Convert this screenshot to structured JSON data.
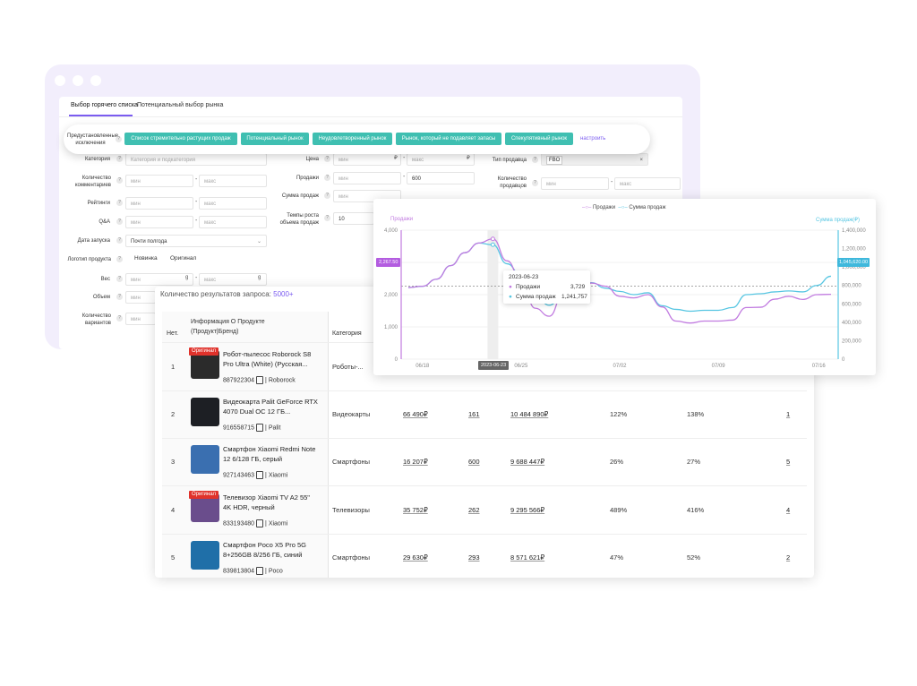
{
  "window": {
    "title": ""
  },
  "tabs": [
    "Выбор горячего списка",
    "Потенциальный выбор рынка"
  ],
  "preset": {
    "label": "Предустановленные исключения",
    "buttons": [
      "Список стремительно растущих продаж",
      "Потенциальный рынок",
      "Неудовлетворенный рынок",
      "Рынок, который не подавляет запасы",
      "Спекулятивный рынок"
    ],
    "customize": "настроить"
  },
  "filters": {
    "category": {
      "label": "Категория",
      "placeholder": "Категория и подкатегория"
    },
    "comments": {
      "label": "Количество комментариев",
      "min": "мин",
      "max": "макс"
    },
    "rating": {
      "label": "Рейтинги",
      "min": "мин",
      "max": "макс"
    },
    "qa": {
      "label": "Q&A",
      "min": "мин",
      "max": "макс"
    },
    "launch": {
      "label": "Дата запуска",
      "value": "Почти полгода"
    },
    "logo": {
      "label": "Логотип продукта",
      "options": [
        "Новинка",
        "Оригинал"
      ]
    },
    "weight": {
      "label": "Вес",
      "min": "мин",
      "max": "макс",
      "unit": "g"
    },
    "volume": {
      "label": "Объем",
      "min": "мин"
    },
    "variants": {
      "label": "Количество вариантов",
      "min": "мин"
    },
    "price": {
      "label": "Цена",
      "min": "мин",
      "max": "макс",
      "currency": "₽"
    },
    "sales": {
      "label": "Продажи",
      "min": "мин",
      "max": "600"
    },
    "sales_sum": {
      "label": "Сумма продаж",
      "min": "мин"
    },
    "growth": {
      "label": "Темпы роста объема продаж",
      "min": "10"
    },
    "seller_type": {
      "label": "Тип продавца",
      "tag": "FBO"
    },
    "sellers": {
      "label": "Количество продавцов",
      "min": "мин",
      "max": "макс"
    }
  },
  "results": {
    "label": "Количество результатов запроса:",
    "count": "5000+",
    "columns": {
      "no": "Нет.",
      "info": "Информация О Продукте (Продукт|Бренд)",
      "category": "Категория"
    },
    "rows": [
      {
        "no": "1",
        "badge": "Оригинал",
        "name": "Робот-пылесос Roborock S8 Pro Ultra (White) (Русская...",
        "sku": "887922304",
        "brand": "Roborock",
        "category": "Роботы-...",
        "price": "",
        "sales": "",
        "sum": "",
        "g1": "",
        "g2": "",
        "sellers": "",
        "img_color": "#2b2b2b"
      },
      {
        "no": "2",
        "badge": "",
        "name": "Видеокарта Palit GeForce RTX 4070 Dual OC 12 ГБ...",
        "sku": "916558715",
        "brand": "Palit",
        "category": "Видеокарты",
        "price": "66 490₽",
        "sales": "161",
        "sum": "10 484 890₽",
        "g1": "122%",
        "g2": "138%",
        "sellers": "1",
        "img_color": "#1d1f24"
      },
      {
        "no": "3",
        "badge": "",
        "name": "Смартфон Xiaomi Redmi Note 12 6/128 ГБ, серый",
        "sku": "927143463",
        "brand": "Xiaomi",
        "category": "Смартфоны",
        "price": "16 207₽",
        "sales": "600",
        "sum": "9 688 447₽",
        "g1": "26%",
        "g2": "27%",
        "sellers": "5",
        "img_color": "#3a6fb0"
      },
      {
        "no": "4",
        "badge": "Оригинал",
        "name": "Телевизор Xiaomi TV A2 55\" 4K HDR, черный",
        "sku": "833193480",
        "brand": "Xiaomi",
        "category": "Телевизоры",
        "price": "35 752₽",
        "sales": "262",
        "sum": "9 295 566₽",
        "g1": "489%",
        "g2": "416%",
        "sellers": "4",
        "img_color": "#6a4d8c"
      },
      {
        "no": "5",
        "badge": "",
        "name": "Смартфон Poco X5 Pro 5G 8+256GB 8/256 ГБ, синий",
        "sku": "839813804",
        "brand": "Poco",
        "category": "Смартфоны",
        "price": "29 630₽",
        "sales": "293",
        "sum": "8 571 621₽",
        "g1": "47%",
        "g2": "52%",
        "sellers": "2",
        "img_color": "#1f6fa8"
      }
    ]
  },
  "chart_data": {
    "type": "line",
    "legend": [
      "Продажи",
      "Сумма продаж"
    ],
    "ylabel_left": "Продажи",
    "ylabel_right": "Сумма продаж(₽)",
    "yticks_left": [
      "0",
      "1,000",
      "2,000",
      "3,000",
      "4,000"
    ],
    "yticks_right": [
      "0",
      "200,000",
      "400,000",
      "600,000",
      "800,000",
      "1,000,000",
      "1,200,000",
      "1,400,000"
    ],
    "xticks": [
      "06/18",
      "06/25",
      "07/02",
      "07/09",
      "07/16"
    ],
    "ylim_left": [
      0,
      4000
    ],
    "ylim_right": [
      0,
      1400000
    ],
    "ref_left": "2,267.50",
    "ref_right": "1,045,620.00",
    "hover_x": "2023-06-23",
    "tooltip": {
      "date": "2023-06-23",
      "series1": "Продажи",
      "value1": "3,729",
      "series2": "Сумма продаж",
      "value2": "1,241,757"
    },
    "colors": {
      "sales": "#c17be0",
      "sum": "#57c6e2",
      "accent": "#7b5cf0"
    },
    "x": [
      0,
      1,
      2,
      3,
      4,
      5,
      6,
      7,
      8,
      9,
      10,
      11,
      12,
      13,
      14,
      15,
      16,
      17,
      18,
      19,
      20,
      21,
      22,
      23,
      24,
      25,
      26,
      27,
      28,
      29,
      30
    ],
    "series": [
      {
        "name": "Продажи",
        "values": [
          2220,
          2260,
          2480,
          2900,
          3300,
          3600,
          3729,
          3050,
          2450,
          1580,
          1330,
          2030,
          1950,
          2360,
          2260,
          1950,
          1900,
          2000,
          1620,
          1180,
          1120,
          1180,
          1180,
          1210,
          1600,
          1610,
          1860,
          1950,
          1850,
          2000,
          2010
        ]
      },
      {
        "name": "Сумма продаж",
        "values": [
          777000,
          790000,
          868000,
          1015000,
          1155000,
          1260000,
          1241757,
          1035000,
          910000,
          700000,
          585000,
          700000,
          770000,
          830000,
          770000,
          735000,
          700000,
          720000,
          580000,
          540000,
          520000,
          530000,
          530000,
          560000,
          700000,
          710000,
          730000,
          740000,
          730000,
          800000,
          900000
        ]
      }
    ]
  }
}
